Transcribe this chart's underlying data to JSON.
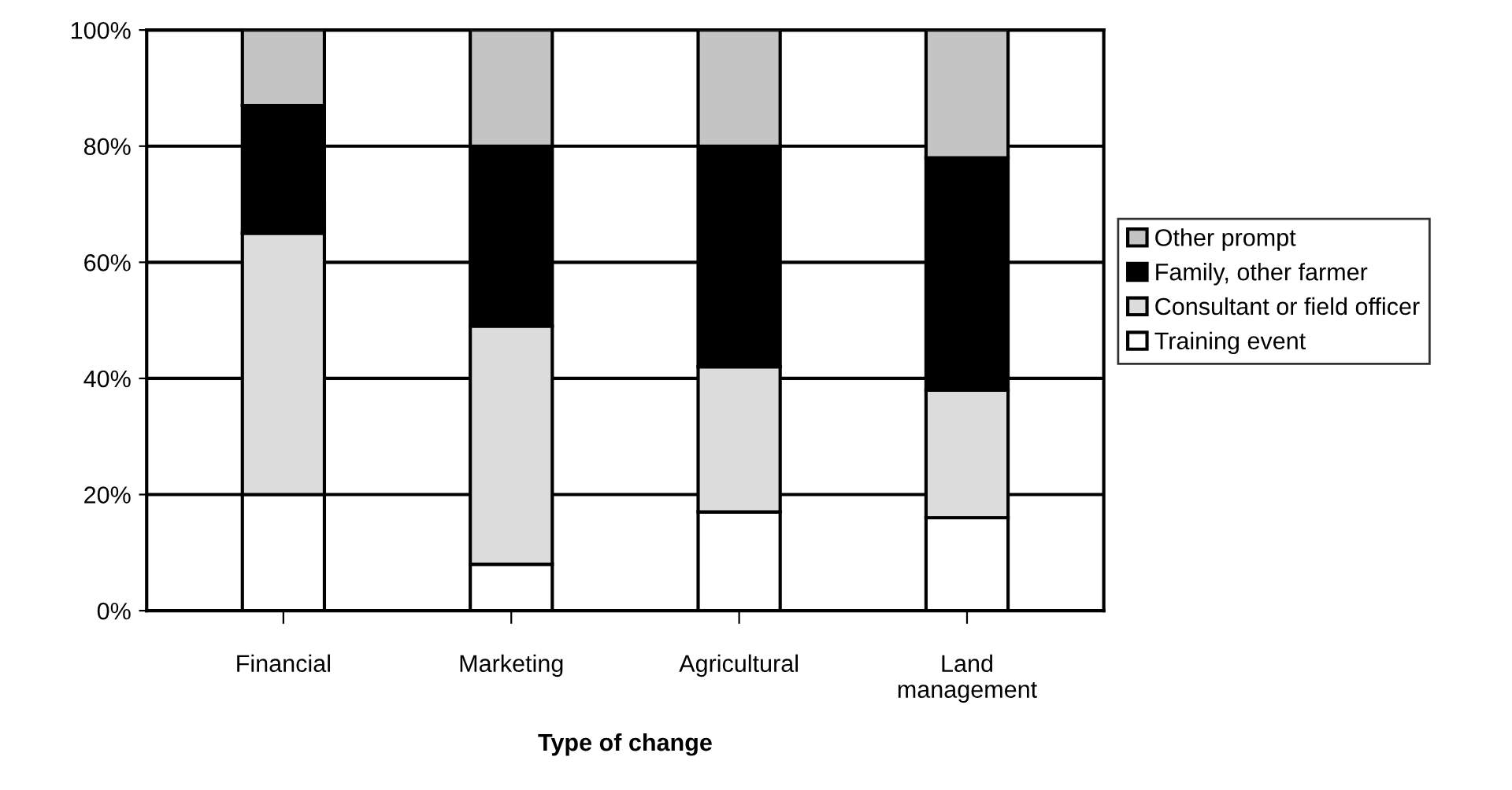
{
  "chart_data": {
    "type": "bar",
    "stacked": true,
    "xlabel": "Type of change",
    "categories": [
      "Financial",
      "Marketing",
      "Agricultural",
      "Land\nmanagement"
    ],
    "series": [
      {
        "name": "Training event",
        "color": "#ffffff",
        "values": [
          20,
          8,
          17,
          16
        ]
      },
      {
        "name": "Consultant or field officer",
        "color": "#dcdcdc",
        "values": [
          45,
          41,
          25,
          22
        ]
      },
      {
        "name": "Family, other farmer",
        "color": "#000000",
        "values": [
          22,
          31,
          38,
          40
        ]
      },
      {
        "name": "Other prompt",
        "color": "#c4c4c4",
        "values": [
          13,
          20,
          20,
          22
        ]
      }
    ],
    "ylim": [
      0,
      100
    ],
    "yticks": [
      {
        "value": 0,
        "label": "0%"
      },
      {
        "value": 20,
        "label": "20%"
      },
      {
        "value": 40,
        "label": "40%"
      },
      {
        "value": 60,
        "label": "60%"
      },
      {
        "value": 80,
        "label": "80%"
      },
      {
        "value": 100,
        "label": "100%"
      }
    ],
    "grid": "y",
    "legend": "right"
  }
}
